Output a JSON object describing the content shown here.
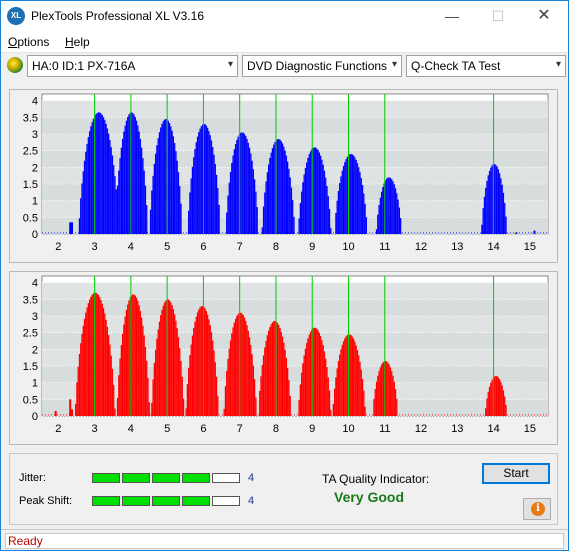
{
  "window": {
    "title": "PlexTools Professional XL V3.16",
    "app_icon": "XL",
    "controls": {
      "minimize": "—",
      "maximize": "☐",
      "close": "✕"
    }
  },
  "menu": {
    "items": [
      {
        "label": "Options",
        "accel": "O",
        "rest": "ptions"
      },
      {
        "label": "Help",
        "accel": "H",
        "rest": "elp"
      }
    ]
  },
  "toolbar": {
    "drive": "HA:0 ID:1  PX-716A",
    "function": "DVD Diagnostic Functions",
    "test": "Q-Check TA Test",
    "drive_icon": "disc-icon",
    "arrow": "▾"
  },
  "chart_data": [
    {
      "type": "bar",
      "name": "land",
      "color": "#0000ff",
      "grid_color": "#00cc00",
      "x_ticks": [
        "2",
        "3",
        "4",
        "5",
        "6",
        "7",
        "8",
        "9",
        "10",
        "11",
        "12",
        "13",
        "14",
        "15"
      ],
      "y_ticks": [
        "4",
        "3.5",
        "3",
        "2.5",
        "2",
        "1.5",
        "1",
        "0.5",
        "0"
      ],
      "ylim": [
        0,
        4.2
      ],
      "xlim": [
        1.55,
        15.5
      ],
      "peaks": [
        {
          "center": 3.1,
          "height": 3.65,
          "halfwidth": 0.55
        },
        {
          "center": 4.0,
          "height": 3.65,
          "halfwidth": 0.45
        },
        {
          "center": 4.95,
          "height": 3.45,
          "halfwidth": 0.45
        },
        {
          "center": 6.0,
          "height": 3.3,
          "halfwidth": 0.45
        },
        {
          "center": 7.05,
          "height": 3.05,
          "halfwidth": 0.45
        },
        {
          "center": 8.05,
          "height": 2.85,
          "halfwidth": 0.45
        },
        {
          "center": 9.05,
          "height": 2.6,
          "halfwidth": 0.45
        },
        {
          "center": 10.05,
          "height": 2.4,
          "halfwidth": 0.45
        },
        {
          "center": 11.1,
          "height": 1.7,
          "halfwidth": 0.35
        },
        {
          "center": 14.0,
          "height": 2.1,
          "halfwidth": 0.35
        }
      ],
      "extras": [
        {
          "x": 2.3,
          "y": 0.35
        },
        {
          "x": 2.35,
          "y": 0.35
        },
        {
          "x": 15.1,
          "y": 0.1
        },
        {
          "x": 14.6,
          "y": 0.05
        }
      ]
    },
    {
      "type": "bar",
      "name": "pit",
      "color": "#ff0000",
      "grid_color": "#00cc00",
      "x_ticks": [
        "2",
        "3",
        "4",
        "5",
        "6",
        "7",
        "8",
        "9",
        "10",
        "11",
        "12",
        "13",
        "14",
        "15"
      ],
      "y_ticks": [
        "4",
        "3.5",
        "3",
        "2.5",
        "2",
        "1.5",
        "1",
        "0.5",
        "0"
      ],
      "ylim": [
        0,
        4.2
      ],
      "xlim": [
        1.55,
        15.5
      ],
      "peaks": [
        {
          "center": 3.0,
          "height": 3.7,
          "halfwidth": 0.55
        },
        {
          "center": 4.05,
          "height": 3.65,
          "halfwidth": 0.45
        },
        {
          "center": 5.0,
          "height": 3.5,
          "halfwidth": 0.45
        },
        {
          "center": 5.95,
          "height": 3.3,
          "halfwidth": 0.45
        },
        {
          "center": 7.0,
          "height": 3.1,
          "halfwidth": 0.45
        },
        {
          "center": 7.95,
          "height": 2.85,
          "halfwidth": 0.45
        },
        {
          "center": 9.05,
          "height": 2.65,
          "halfwidth": 0.45
        },
        {
          "center": 10.0,
          "height": 2.45,
          "halfwidth": 0.45
        },
        {
          "center": 11.0,
          "height": 1.65,
          "halfwidth": 0.35
        },
        {
          "center": 14.05,
          "height": 1.2,
          "halfwidth": 0.3
        }
      ],
      "extras": [
        {
          "x": 1.9,
          "y": 0.15
        },
        {
          "x": 2.3,
          "y": 0.5
        },
        {
          "x": 2.35,
          "y": 0.2
        }
      ]
    }
  ],
  "results": {
    "jitter_label": "Jitter:",
    "jitter_level": 4,
    "jitter_value": "4",
    "peak_shift_label": "Peak Shift:",
    "peak_shift_level": 4,
    "peak_shift_value": "4",
    "segments": 5,
    "quality_label": "TA Quality Indicator:",
    "quality_value": "Very Good",
    "start_label": "Start",
    "info_icon": "i"
  },
  "status": {
    "text": "Ready"
  }
}
